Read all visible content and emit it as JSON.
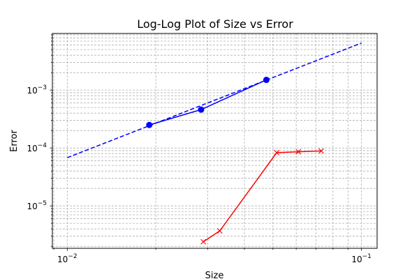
{
  "chart_data": {
    "type": "line",
    "title": "Log-Log Plot of Size vs Error",
    "xlabel": "Size",
    "ylabel": "Error",
    "xscale": "log",
    "yscale": "log",
    "xlim": [
      0.0089,
      0.113
    ],
    "ylim": [
      1.85e-06,
      0.0095
    ],
    "grid": true,
    "legend": "none",
    "x_ticks": [
      {
        "value": 0.01,
        "base": "10",
        "exp": "−2"
      },
      {
        "value": 0.1,
        "base": "10",
        "exp": "−1"
      }
    ],
    "y_ticks": [
      {
        "value": 1e-05,
        "base": "10",
        "exp": "−5"
      },
      {
        "value": 0.0001,
        "base": "10",
        "exp": "−4"
      },
      {
        "value": 0.001,
        "base": "10",
        "exp": "−3"
      }
    ],
    "series": [
      {
        "color": "#0000ff",
        "style": "solid",
        "marker": "circle",
        "x": [
          0.019,
          0.0285,
          0.0475
        ],
        "y": [
          0.00025,
          0.00046,
          0.0015
        ]
      },
      {
        "color": "#0000ff",
        "style": "dashed",
        "marker": "none",
        "x": [
          0.01,
          0.1
        ],
        "y": [
          6.8e-05,
          0.0065
        ]
      },
      {
        "color": "#ff0000",
        "style": "solid",
        "marker": "x",
        "x": [
          0.029,
          0.033,
          0.0515,
          0.061,
          0.073
        ],
        "y": [
          2.4e-06,
          3.7e-06,
          8.3e-05,
          8.6e-05,
          8.9e-05
        ]
      }
    ]
  }
}
